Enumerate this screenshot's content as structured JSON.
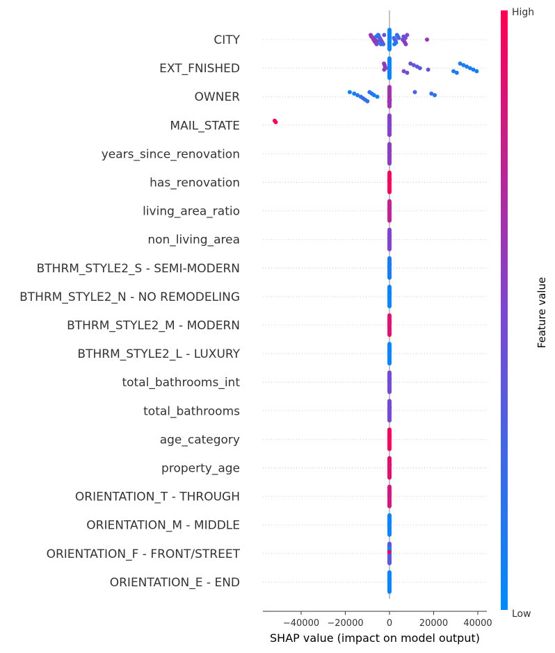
{
  "chart_data": {
    "type": "scatter",
    "subtype": "shap-beeswarm",
    "xlabel": "SHAP value (impact on model output)",
    "x_ticks": [
      -40000,
      -20000,
      0,
      20000,
      40000
    ],
    "x_tick_labels": [
      "−40000",
      "−20000",
      "0",
      "20000",
      "40000"
    ],
    "xlim": [
      -57000,
      44000
    ],
    "colorbar": {
      "title": "Feature value",
      "high_label": "High",
      "low_label": "Low",
      "high_color": "#ff0052",
      "low_color": "#008bfb"
    },
    "colors": {
      "low": "#008bfb",
      "high": "#ff0052",
      "zero_line": "#999999",
      "row_line": "#cccccc"
    },
    "features": [
      {
        "name": "CITY",
        "points": [
          [
            -8500,
            0.6
          ],
          [
            -8000,
            0.65
          ],
          [
            -7600,
            0.6
          ],
          [
            -7200,
            0.62
          ],
          [
            -6800,
            0.55
          ],
          [
            -6300,
            0.6
          ],
          [
            -5800,
            0.5
          ],
          [
            -5200,
            0.55
          ],
          [
            -4800,
            0.4
          ],
          [
            -4400,
            0.45
          ],
          [
            -4000,
            0.35
          ],
          [
            -3600,
            0.5
          ],
          [
            -3200,
            0.45
          ],
          [
            -2800,
            0.3
          ],
          [
            -2400,
            0.4
          ],
          [
            -8200,
            0.6
          ],
          [
            -7400,
            0.58
          ],
          [
            -6600,
            0.6
          ],
          [
            -5600,
            0.62
          ],
          [
            -4600,
            0.2
          ],
          [
            -3800,
            0.25
          ],
          [
            -5000,
            0.15
          ],
          [
            -6000,
            0.1
          ],
          [
            2000,
            0.3
          ],
          [
            2400,
            0.25
          ],
          [
            2800,
            0.35
          ],
          [
            3000,
            0.2
          ],
          [
            2200,
            0.1
          ],
          [
            3400,
            0.15
          ],
          [
            3800,
            0.22
          ],
          [
            4200,
            0.3
          ],
          [
            6000,
            0.5
          ],
          [
            6600,
            0.55
          ],
          [
            7000,
            0.6
          ],
          [
            7400,
            0.55
          ],
          [
            8000,
            0.5
          ],
          [
            6400,
            0.4
          ],
          [
            7200,
            0.45
          ],
          [
            17000,
            0.6
          ]
        ]
      },
      {
        "name": "EXT_FNISHED",
        "points": [
          [
            -2500,
            0.6
          ],
          [
            -2200,
            0.62
          ],
          [
            -2000,
            0.6
          ],
          [
            -1800,
            0.58
          ],
          [
            -2400,
            0.55
          ],
          [
            6500,
            0.5
          ],
          [
            8000,
            0.45
          ],
          [
            9500,
            0.4
          ],
          [
            11000,
            0.4
          ],
          [
            12500,
            0.35
          ],
          [
            13800,
            0.4
          ],
          [
            17500,
            0.4
          ],
          [
            29000,
            0.1
          ],
          [
            30500,
            0.15
          ],
          [
            32000,
            0.1
          ],
          [
            33500,
            0.1
          ],
          [
            35000,
            0.1
          ],
          [
            36500,
            0.1
          ],
          [
            38000,
            0.1
          ],
          [
            39500,
            0.1
          ]
        ]
      },
      {
        "name": "OWNER",
        "points": [
          [
            -18000,
            0.1
          ],
          [
            -16000,
            0.1
          ],
          [
            -14500,
            0.1
          ],
          [
            -13000,
            0.2
          ],
          [
            -12000,
            0.2
          ],
          [
            -11000,
            0.2
          ],
          [
            -10000,
            0.2
          ],
          [
            -9000,
            0.2
          ],
          [
            -8000,
            0.1
          ],
          [
            -7000,
            0.1
          ],
          [
            -5500,
            0.1
          ],
          [
            0,
            0.7
          ],
          [
            150,
            0.6
          ],
          [
            -150,
            0.6
          ],
          [
            11500,
            0.3
          ],
          [
            19000,
            0.2
          ],
          [
            20500,
            0.2
          ]
        ]
      },
      {
        "name": "MAIL_STATE",
        "points": [
          [
            -52000,
            0.95
          ],
          [
            -51500,
            0.95
          ],
          [
            0,
            0.6
          ],
          [
            100,
            0.5
          ],
          [
            -100,
            0.5
          ]
        ]
      },
      {
        "name": "years_since_renovation",
        "points": [
          [
            0,
            0.6
          ],
          [
            100,
            0.55
          ],
          [
            -100,
            0.55
          ]
        ]
      },
      {
        "name": "has_renovation",
        "points": [
          [
            0,
            0.95
          ],
          [
            100,
            0.95
          ],
          [
            -100,
            0.95
          ]
        ]
      },
      {
        "name": "living_area_ratio",
        "points": [
          [
            0,
            0.8
          ],
          [
            100,
            0.7
          ],
          [
            -100,
            0.75
          ]
        ]
      },
      {
        "name": "non_living_area",
        "points": [
          [
            0,
            0.55
          ],
          [
            100,
            0.5
          ],
          [
            -100,
            0.5
          ]
        ]
      },
      {
        "name": "BTHRM_STYLE2_S - SEMI-MODERN",
        "points": [
          [
            0,
            0.15
          ],
          [
            100,
            0.1
          ],
          [
            -100,
            0.1
          ]
        ]
      },
      {
        "name": "BTHRM_STYLE2_N - NO REMODELING",
        "points": [
          [
            0,
            0.05
          ],
          [
            100,
            0.05
          ],
          [
            -100,
            0.05
          ]
        ]
      },
      {
        "name": "BTHRM_STYLE2_M - MODERN",
        "points": [
          [
            0,
            0.9
          ],
          [
            100,
            0.85
          ],
          [
            -100,
            0.85
          ]
        ]
      },
      {
        "name": "BTHRM_STYLE2_L - LUXURY",
        "points": [
          [
            0,
            0.05
          ],
          [
            100,
            0.05
          ],
          [
            -100,
            0.05
          ]
        ]
      },
      {
        "name": "total_bathrooms_int",
        "points": [
          [
            0,
            0.5
          ],
          [
            100,
            0.45
          ],
          [
            -100,
            0.45
          ]
        ]
      },
      {
        "name": "total_bathrooms",
        "points": [
          [
            0,
            0.5
          ],
          [
            100,
            0.45
          ],
          [
            -100,
            0.45
          ]
        ]
      },
      {
        "name": "age_category",
        "points": [
          [
            0,
            0.95
          ],
          [
            100,
            0.95
          ],
          [
            -100,
            0.95
          ]
        ]
      },
      {
        "name": "property_age",
        "points": [
          [
            0,
            0.9
          ],
          [
            100,
            0.9
          ],
          [
            -100,
            0.85
          ]
        ]
      },
      {
        "name": "ORIENTATION_T - THROUGH",
        "points": [
          [
            0,
            0.85
          ],
          [
            100,
            0.8
          ],
          [
            -100,
            0.8
          ]
        ]
      },
      {
        "name": "ORIENTATION_M - MIDDLE",
        "points": [
          [
            0,
            0.05
          ],
          [
            100,
            0.05
          ],
          [
            -100,
            0.05
          ]
        ]
      },
      {
        "name": "ORIENTATION_F - FRONT/STREET",
        "points": [
          [
            0,
            0.05
          ],
          [
            100,
            0.05
          ],
          [
            -100,
            0.95
          ]
        ]
      },
      {
        "name": "ORIENTATION_E - END",
        "points": [
          [
            0,
            0.05
          ],
          [
            100,
            0.05
          ],
          [
            -100,
            0.05
          ]
        ]
      }
    ]
  }
}
